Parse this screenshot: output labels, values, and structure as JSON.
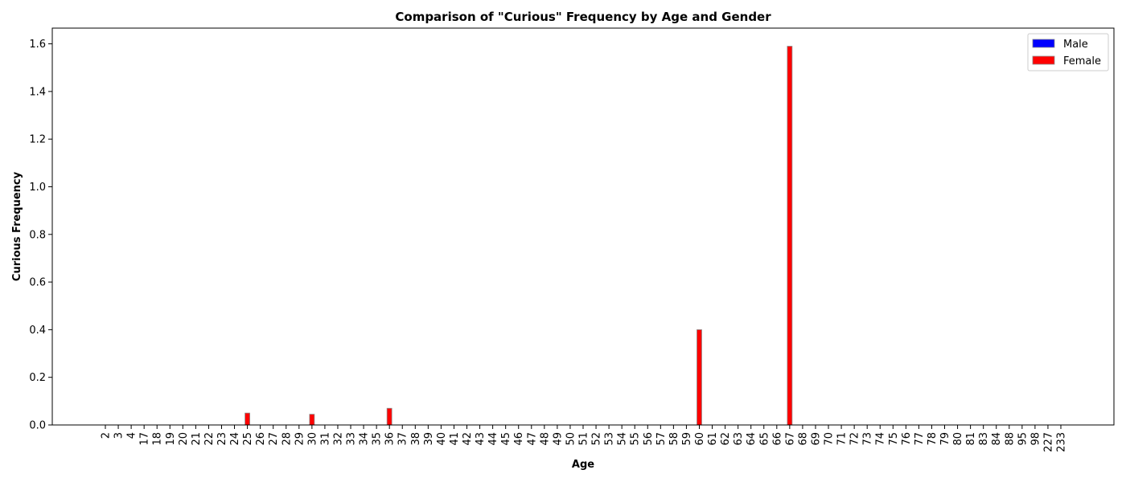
{
  "chart_data": {
    "type": "bar",
    "title": "Comparison of \"Curious\" Frequency by Age and Gender",
    "xlabel": "Age",
    "ylabel": "Curious Frequency",
    "ylim": [
      0,
      1.666
    ],
    "yticks": [
      "0.0",
      "0.2",
      "0.4",
      "0.6",
      "0.8",
      "1.0",
      "1.2",
      "1.4",
      "1.6"
    ],
    "grid": false,
    "legend_position": "top-right",
    "categories": [
      "2",
      "3",
      "4",
      "17",
      "18",
      "19",
      "20",
      "21",
      "22",
      "23",
      "24",
      "25",
      "26",
      "27",
      "28",
      "29",
      "30",
      "31",
      "32",
      "33",
      "34",
      "35",
      "36",
      "37",
      "38",
      "39",
      "40",
      "41",
      "42",
      "43",
      "44",
      "45",
      "46",
      "47",
      "48",
      "49",
      "50",
      "51",
      "52",
      "53",
      "54",
      "55",
      "56",
      "57",
      "58",
      "59",
      "60",
      "61",
      "62",
      "63",
      "64",
      "65",
      "66",
      "67",
      "68",
      "69",
      "70",
      "71",
      "72",
      "73",
      "74",
      "75",
      "76",
      "77",
      "78",
      "79",
      "80",
      "81",
      "83",
      "84",
      "88",
      "95",
      "98",
      "227",
      "233"
    ],
    "series": [
      {
        "name": "Male",
        "color": "#0000ff",
        "values": [
          0,
          0,
          0,
          0,
          0,
          0,
          0,
          0,
          0,
          0,
          0,
          0,
          0,
          0,
          0,
          0,
          0,
          0,
          0,
          0,
          0,
          0,
          0,
          0,
          0,
          0,
          0,
          0,
          0,
          0,
          0,
          0,
          0,
          0,
          0,
          0,
          0,
          0,
          0,
          0,
          0,
          0,
          0,
          0,
          0,
          0,
          0,
          0,
          0,
          0,
          0,
          0,
          0,
          0,
          0,
          0,
          0,
          0,
          0,
          0,
          0,
          0,
          0,
          0,
          0,
          0,
          0,
          0,
          0,
          0,
          0,
          0,
          0,
          0,
          0
        ]
      },
      {
        "name": "Female",
        "color": "#ff0000",
        "values": [
          0,
          0,
          0,
          0,
          0,
          0,
          0,
          0,
          0,
          0,
          0,
          0.05,
          0,
          0,
          0,
          0,
          0.045,
          0,
          0,
          0,
          0,
          0,
          0.07,
          0,
          0,
          0,
          0,
          0,
          0,
          0,
          0,
          0,
          0,
          0,
          0,
          0,
          0,
          0,
          0,
          0,
          0,
          0,
          0,
          0,
          0,
          0,
          0.4,
          0,
          0,
          0,
          0,
          0,
          0,
          1.59,
          0,
          0,
          0,
          0,
          0,
          0,
          0,
          0,
          0,
          0,
          0,
          0,
          0,
          0,
          0,
          0,
          0,
          0,
          0,
          0,
          0
        ]
      }
    ]
  }
}
